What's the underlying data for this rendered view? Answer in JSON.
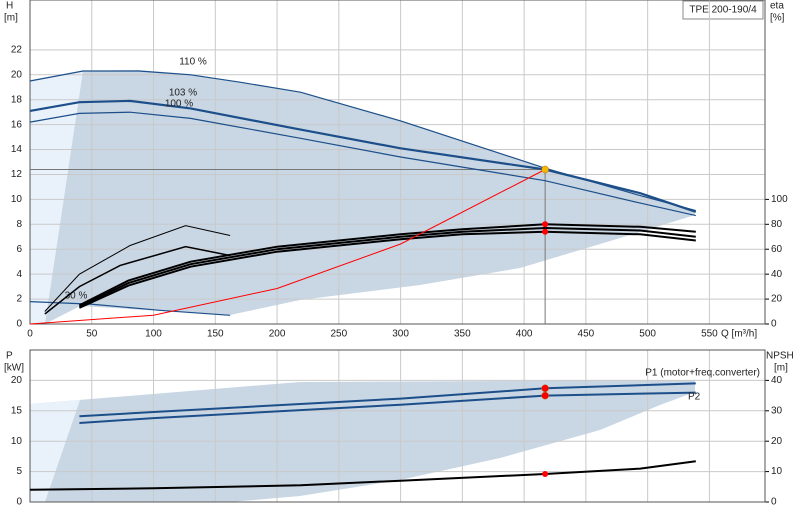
{
  "chart_data": [
    {
      "type": "line",
      "title": "TPE 200-190/4",
      "xlabel": "Q [m³/h]",
      "ylabel": "H",
      "yunit": "[m]",
      "y2label": "eta",
      "y2unit": "[%]",
      "xlim": [
        0,
        595
      ],
      "xticks": [
        0,
        50,
        100,
        150,
        200,
        250,
        300,
        350,
        400,
        450,
        500,
        550
      ],
      "ylim": [
        0,
        26
      ],
      "yticks": [
        0,
        2,
        4,
        6,
        8,
        10,
        12,
        14,
        16,
        18,
        20,
        22
      ],
      "y2lim": [
        0,
        260
      ],
      "y2ticks": [
        0,
        20,
        40,
        60,
        80,
        100
      ],
      "grid": true,
      "series": [
        {
          "name": "110 %",
          "color": "#1c4f8a",
          "width": 1.2,
          "x": [
            0,
            43,
            88,
            130,
            170,
            219,
            300,
            417,
            494,
            539
          ],
          "values": [
            19.5,
            20.3,
            20.3,
            20.0,
            19.4,
            18.6,
            16.3,
            12.5,
            10.3,
            9.1
          ]
        },
        {
          "name": "103 %",
          "color": "#1c4f8a",
          "width": 2.2,
          "x": [
            0,
            40,
            81,
            130,
            219,
            300,
            417,
            494,
            539
          ],
          "values": [
            17.1,
            17.8,
            17.9,
            17.3,
            15.6,
            14.1,
            12.4,
            10.5,
            9.0
          ]
        },
        {
          "name": "100 %",
          "color": "#1c4f8a",
          "width": 1.2,
          "x": [
            0,
            40,
            81,
            130,
            219,
            300,
            417,
            494,
            539
          ],
          "values": [
            16.2,
            16.9,
            17.0,
            16.5,
            14.9,
            13.4,
            11.5,
            9.7,
            8.7
          ]
        },
        {
          "name": "30 %",
          "color": "#1c4f8a",
          "width": 1.2,
          "x": [
            0,
            49,
            105,
            162
          ],
          "values": [
            1.8,
            1.6,
            1.1,
            0.7
          ]
        },
        {
          "color": "#000000",
          "width": 2,
          "axis": "y2",
          "x": [
            40,
            80,
            130,
            200,
            300,
            350,
            417,
            494,
            539
          ],
          "values": [
            15,
            35,
            50,
            62,
            72,
            76,
            80,
            78,
            74
          ]
        },
        {
          "color": "#000000",
          "width": 2,
          "axis": "y2",
          "x": [
            40,
            80,
            130,
            200,
            300,
            350,
            417,
            494,
            539
          ],
          "values": [
            14,
            33,
            48,
            60,
            70,
            74,
            77,
            75,
            70
          ]
        },
        {
          "color": "#000000",
          "width": 2,
          "axis": "y2",
          "x": [
            40,
            80,
            130,
            200,
            300,
            350,
            417,
            494,
            539
          ],
          "values": [
            13,
            31,
            46,
            58,
            68,
            72,
            74,
            72,
            67
          ]
        },
        {
          "color": "#000000",
          "width": 1,
          "axis": "y2",
          "x": [
            12,
            40,
            81,
            126,
            162
          ],
          "values": [
            10,
            40,
            63,
            79,
            71
          ]
        },
        {
          "color": "#000000",
          "width": 1.5,
          "axis": "y2",
          "x": [
            12,
            40,
            73,
            126,
            162
          ],
          "values": [
            8,
            30,
            47,
            62,
            55
          ]
        },
        {
          "color": "#ff0000",
          "width": 1,
          "x": [
            0,
            100,
            200,
            300,
            417
          ],
          "values": [
            0,
            0.71,
            2.85,
            6.42,
            12.4
          ]
        }
      ],
      "duty_point": {
        "x": 417,
        "y": [
          12.4
        ],
        "y2": [
          80,
          74
        ],
        "y_color": "#f5b800",
        "y2_color": "#ff0000",
        "guides": true
      }
    },
    {
      "type": "line",
      "ylabel": "P",
      "yunit": "[kW]",
      "y2label": "NPSH",
      "y2unit": "[m]",
      "xlim": [
        0,
        595
      ],
      "xticks": [
        0,
        50,
        100,
        150,
        200,
        250,
        300,
        350,
        400,
        450,
        500,
        550
      ],
      "ylim": [
        0,
        25
      ],
      "yticks": [
        0,
        5,
        10,
        15,
        20
      ],
      "y2lim": [
        0,
        50
      ],
      "y2ticks": [
        0,
        10,
        20,
        30,
        40
      ],
      "grid": true,
      "series": [
        {
          "name": "P1 (motor+freq.converter)",
          "color": "#1c4f8a",
          "width": 2,
          "x": [
            40,
            100,
            200,
            300,
            417,
            539
          ],
          "values": [
            14.1,
            14.8,
            15.9,
            17.0,
            18.7,
            19.5
          ]
        },
        {
          "name": "P2",
          "color": "#1c4f8a",
          "width": 2,
          "x": [
            40,
            100,
            200,
            300,
            417,
            539
          ],
          "values": [
            13.0,
            13.8,
            14.9,
            16.0,
            17.5,
            18.0
          ]
        },
        {
          "color": "#000000",
          "width": 2,
          "axis": "y2",
          "x": [
            0,
            100,
            219,
            300,
            417,
            494,
            539
          ],
          "values": [
            4,
            4.5,
            5.5,
            7,
            9.2,
            11,
            13.4
          ]
        }
      ],
      "duty_point": {
        "x": 417,
        "y": [
          18.7,
          17.5
        ],
        "y2": [
          9.2
        ],
        "y_color": "#ff0000",
        "y2_color": "#ff0000",
        "guides": false
      }
    }
  ]
}
